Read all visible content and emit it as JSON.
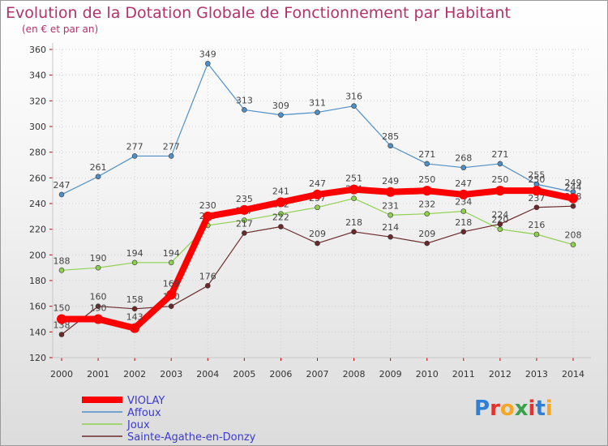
{
  "title": "Evolution de la Dotation Globale de Fonctionnement par Habitant",
  "subtitle": "(en € et par an)",
  "brand": {
    "letters": [
      "P",
      "r",
      "o",
      "x",
      "i",
      "t",
      "i"
    ],
    "colors": [
      "#2f7fd6",
      "#e3312b",
      "#f5a623",
      "#3aa14a",
      "#e3312b",
      "#2f7fd6",
      "#f5a623"
    ]
  },
  "chart_data": {
    "type": "line",
    "title": "Evolution de la Dotation Globale de Fonctionnement par Habitant",
    "subtitle": "(en € et par an)",
    "xlabel": "",
    "ylabel": "",
    "x": [
      "2000",
      "2001",
      "2002",
      "2003",
      "2004",
      "2005",
      "2006",
      "2007",
      "2008",
      "2009",
      "2010",
      "2011",
      "2012",
      "2013",
      "2014"
    ],
    "ylim": [
      120,
      360
    ],
    "yticks": [
      "120",
      "140",
      "160",
      "180",
      "200",
      "220",
      "240",
      "260",
      "280",
      "300",
      "320",
      "340",
      "360"
    ],
    "grid": true,
    "legend_position": "bottom-left",
    "series": [
      {
        "name": "Affoux",
        "color": "#4f8fc6",
        "values": [
          247,
          261,
          277,
          277,
          349,
          313,
          309,
          311,
          316,
          285,
          271,
          268,
          271,
          255,
          249
        ],
        "labels": [
          "247",
          "261",
          "277",
          "277",
          "349",
          "313",
          "309",
          "311",
          "316",
          "285",
          "271",
          "268",
          "271",
          "255",
          "249"
        ]
      },
      {
        "name": "Joux",
        "color": "#8fd14f",
        "values": [
          188,
          190,
          194,
          194,
          223,
          227,
          232,
          237,
          244,
          231,
          232,
          234,
          220,
          216,
          208
        ],
        "labels": [
          "188",
          "190",
          "194",
          "194",
          "223",
          "227",
          "232",
          "237",
          "244",
          "231",
          "232",
          "234",
          "220",
          "216",
          "208"
        ]
      },
      {
        "name": "Sainte-Agathe-en-Donzy",
        "color": "#6b2a2a",
        "values": [
          138,
          160,
          158,
          160,
          176,
          217,
          222,
          209,
          218,
          214,
          209,
          218,
          224,
          237,
          238
        ],
        "labels": [
          "138",
          "160",
          "158",
          "160",
          "176",
          "217",
          "222",
          "209",
          "218",
          "214",
          "209",
          "218",
          "224",
          "237",
          "238"
        ]
      },
      {
        "name": "VIOLAY",
        "color": "#ff0000",
        "values": [
          150,
          150,
          143,
          169,
          230,
          235,
          241,
          247,
          251,
          249,
          250,
          247,
          250,
          250,
          244
        ],
        "labels": [
          "150",
          "150",
          "143",
          "169",
          "230",
          "235",
          "241",
          "247",
          "251",
          "249",
          "250",
          "247",
          "250",
          "250",
          "244"
        ]
      }
    ],
    "legend": [
      "VIOLAY",
      "Affoux",
      "Joux",
      "Sainte-Agathe-en-Donzy"
    ]
  }
}
